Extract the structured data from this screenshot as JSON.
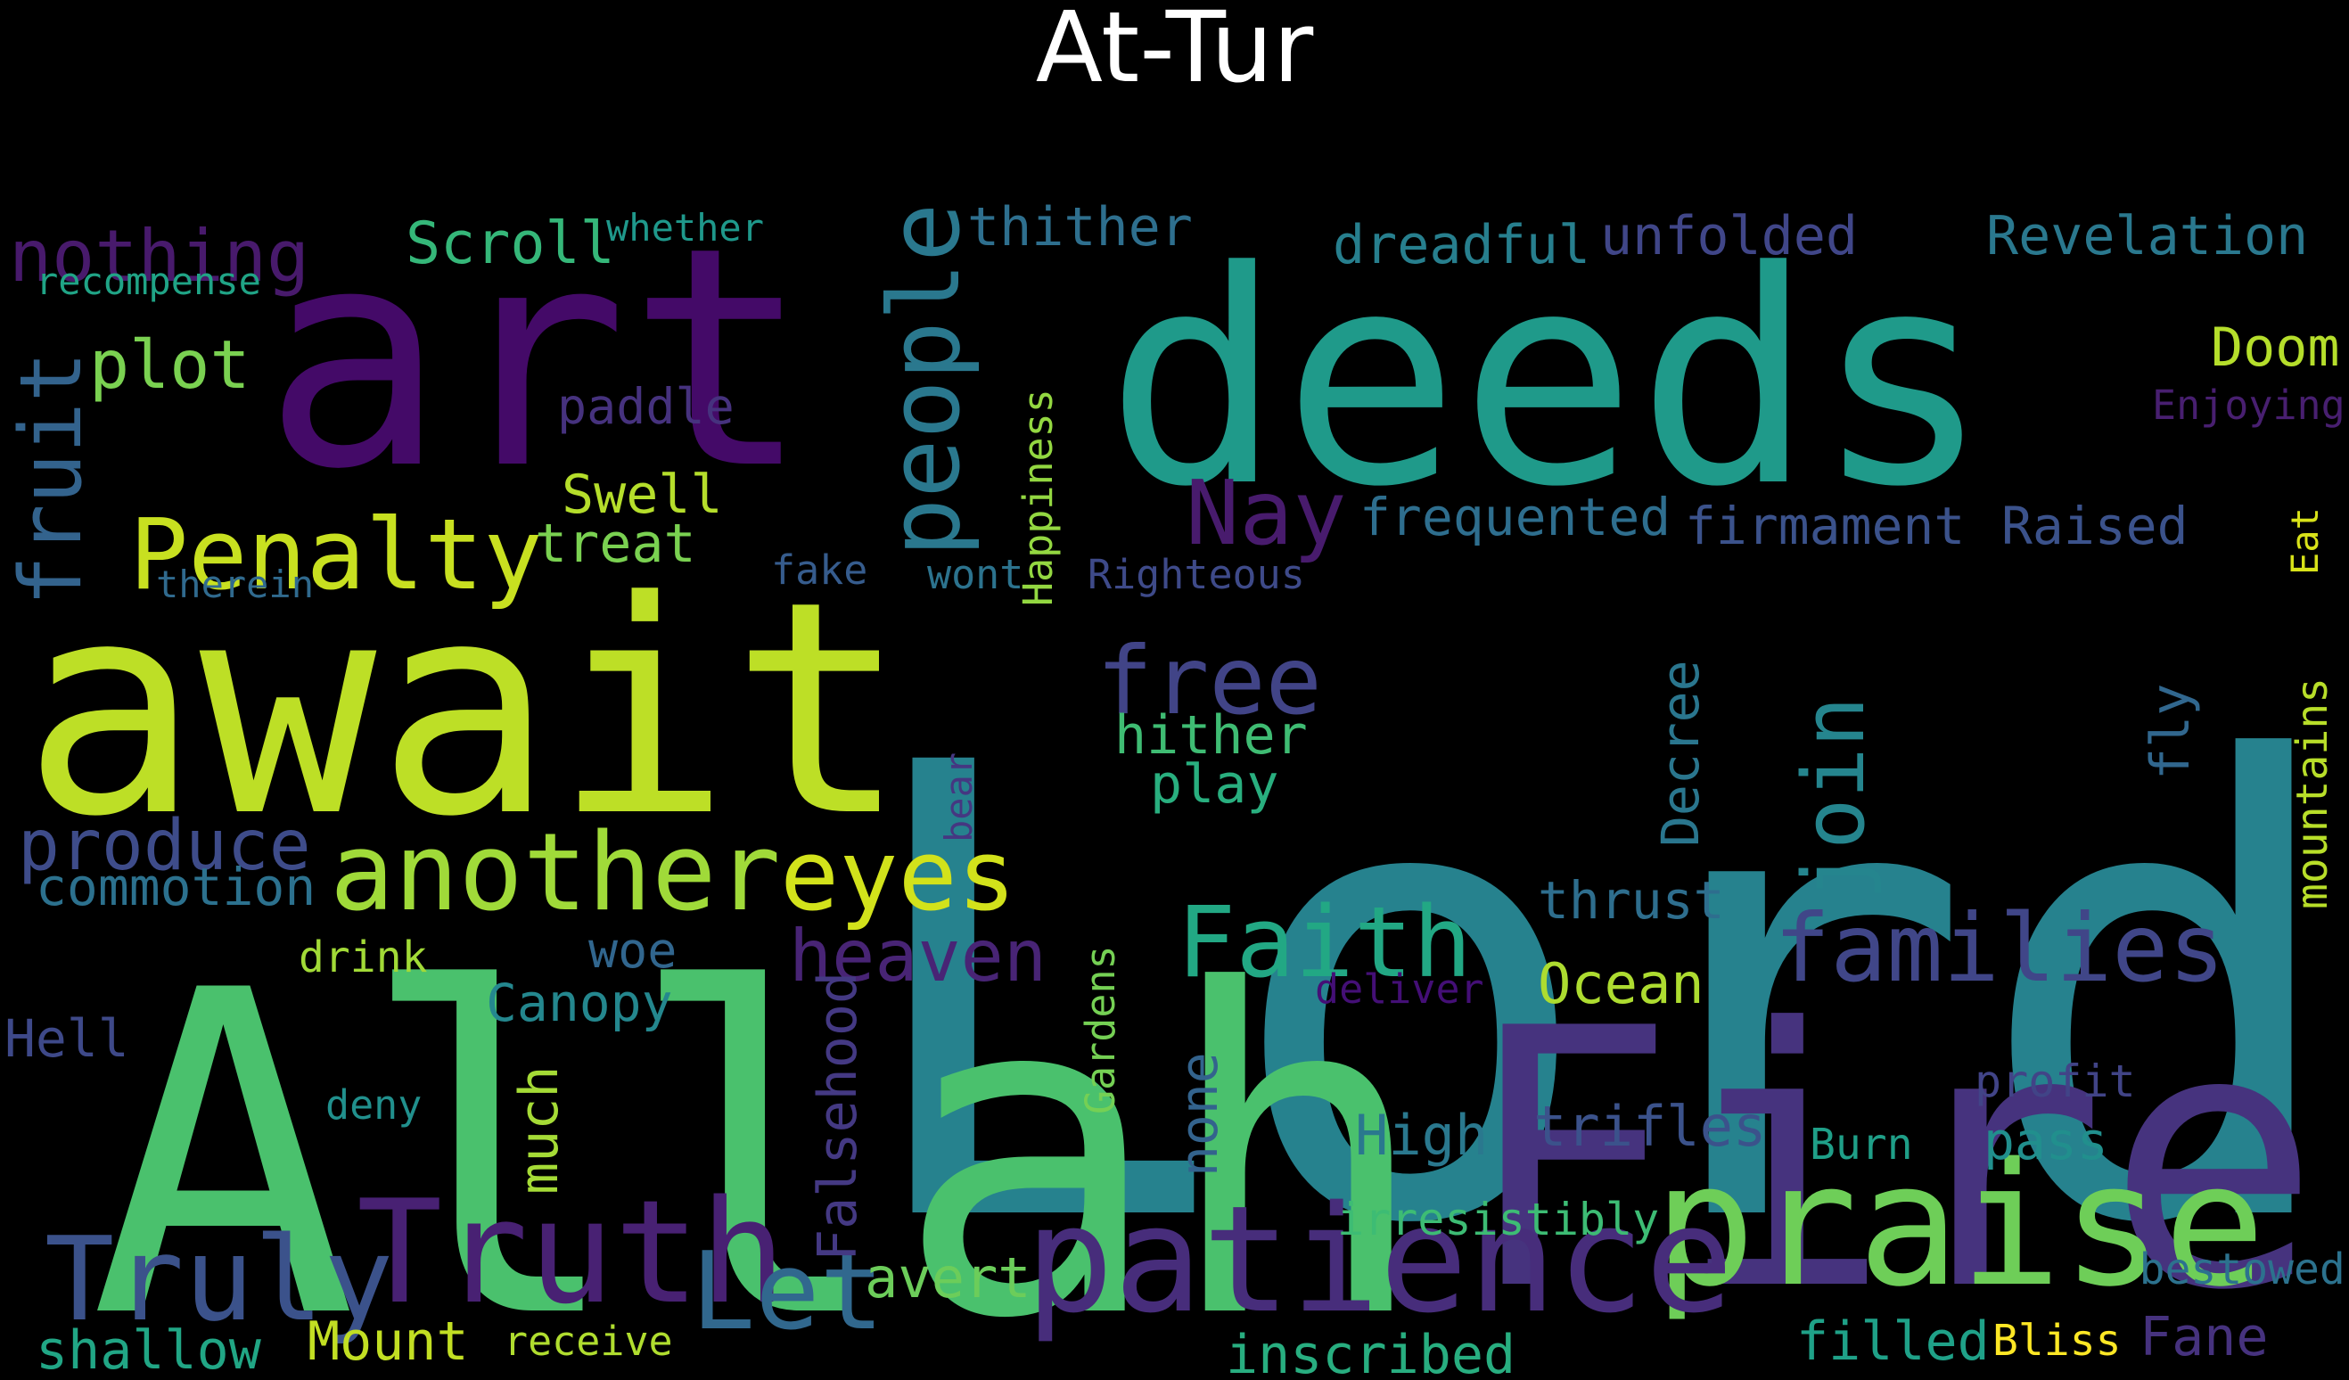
{
  "title": "At-Tur",
  "palette": {
    "background": "#000000",
    "title_color": "#ffffff"
  },
  "words": [
    {
      "text": "Lord",
      "color": "#26828e"
    },
    {
      "text": "Allah",
      "color": "#4ac16d"
    },
    {
      "text": "art",
      "color": "#440a68"
    },
    {
      "text": "deeds",
      "color": "#1f9a8a"
    },
    {
      "text": "await",
      "color": "#bddf26"
    },
    {
      "text": "Fire",
      "color": "#46337e"
    },
    {
      "text": "praise",
      "color": "#6ece58"
    },
    {
      "text": "patience",
      "color": "#472d7b"
    },
    {
      "text": "Truth",
      "color": "#482173"
    },
    {
      "text": "Truly",
      "color": "#3b528b"
    },
    {
      "text": "Let",
      "color": "#31688e"
    },
    {
      "text": "another",
      "color": "#a0da39"
    },
    {
      "text": "eyes",
      "color": "#d2e21b"
    },
    {
      "text": "people",
      "color": "#2a788e"
    },
    {
      "text": "Penalty",
      "color": "#c8e020"
    },
    {
      "text": "Faith",
      "color": "#22a884"
    },
    {
      "text": "families",
      "color": "#404688"
    },
    {
      "text": "free",
      "color": "#414487"
    },
    {
      "text": "fruit",
      "color": "#33638d"
    },
    {
      "text": "nothing",
      "color": "#481a6c"
    },
    {
      "text": "plot",
      "color": "#7ad151"
    },
    {
      "text": "Nay",
      "color": "#481b6d"
    },
    {
      "text": "heaven",
      "color": "#482475"
    },
    {
      "text": "produce",
      "color": "#3e4c8a"
    },
    {
      "text": "join",
      "color": "#25858e"
    },
    {
      "text": "Scroll",
      "color": "#35b779"
    },
    {
      "text": "Revelation",
      "color": "#2a788e"
    },
    {
      "text": "thither",
      "color": "#2e6f8e"
    },
    {
      "text": "dreadful",
      "color": "#277f8e"
    },
    {
      "text": "unfolded",
      "color": "#404688"
    },
    {
      "text": "Doom",
      "color": "#b5de2b"
    },
    {
      "text": "Swell",
      "color": "#b5de2b"
    },
    {
      "text": "treat",
      "color": "#7ad151"
    },
    {
      "text": "paddle",
      "color": "#46327e"
    },
    {
      "text": "frequented",
      "color": "#2e6e8e"
    },
    {
      "text": "firmament",
      "color": "#3b528b"
    },
    {
      "text": "Raised",
      "color": "#3b528b"
    },
    {
      "text": "Enjoying",
      "color": "#481f70"
    },
    {
      "text": "Happiness",
      "color": "#93d741"
    },
    {
      "text": "whether",
      "color": "#1f988b"
    },
    {
      "text": "recompense",
      "color": "#20a486"
    },
    {
      "text": "therein",
      "color": "#306a8e"
    },
    {
      "text": "fake",
      "color": "#365c8d"
    },
    {
      "text": "wont",
      "color": "#2c738e"
    },
    {
      "text": "Righteous",
      "color": "#3e4a89"
    },
    {
      "text": "hither",
      "color": "#3fbc73"
    },
    {
      "text": "play",
      "color": "#29af7f"
    },
    {
      "text": "Decree",
      "color": "#2a768e"
    },
    {
      "text": "bear",
      "color": "#453781"
    },
    {
      "text": "fly",
      "color": "#31678e"
    },
    {
      "text": "mountains",
      "color": "#b8de29"
    },
    {
      "text": "Eat",
      "color": "#d8e219"
    },
    {
      "text": "commotion",
      "color": "#2c718e"
    },
    {
      "text": "thrust",
      "color": "#2e6e8e"
    },
    {
      "text": "Ocean",
      "color": "#addc30"
    },
    {
      "text": "deliver",
      "color": "#440f76"
    },
    {
      "text": "woe",
      "color": "#31668e"
    },
    {
      "text": "drink",
      "color": "#a2da37"
    },
    {
      "text": "Canopy",
      "color": "#24878e"
    },
    {
      "text": "Hell",
      "color": "#3e4989"
    },
    {
      "text": "deny",
      "color": "#21908d"
    },
    {
      "text": "much",
      "color": "#a5db36"
    },
    {
      "text": "Falsehood",
      "color": "#443983"
    },
    {
      "text": "Gardens",
      "color": "#75d054"
    },
    {
      "text": "none",
      "color": "#33638d"
    },
    {
      "text": "High",
      "color": "#2a788e"
    },
    {
      "text": "trifles",
      "color": "#3b528b"
    },
    {
      "text": "profit",
      "color": "#414487"
    },
    {
      "text": "pass",
      "color": "#218f8d"
    },
    {
      "text": "Burn",
      "color": "#1f9f88"
    },
    {
      "text": "irresistibly",
      "color": "#3dbc74"
    },
    {
      "text": "bestowed",
      "color": "#2c728e"
    },
    {
      "text": "avert",
      "color": "#6ccd5a"
    },
    {
      "text": "shallow",
      "color": "#21a685"
    },
    {
      "text": "Mount",
      "color": "#c2df23"
    },
    {
      "text": "receive",
      "color": "#b0dd2f"
    },
    {
      "text": "inscribed",
      "color": "#28ae80"
    },
    {
      "text": "filled",
      "color": "#1fa188"
    },
    {
      "text": "Bliss",
      "color": "#fde725"
    },
    {
      "text": "Fane",
      "color": "#46327e"
    }
  ]
}
